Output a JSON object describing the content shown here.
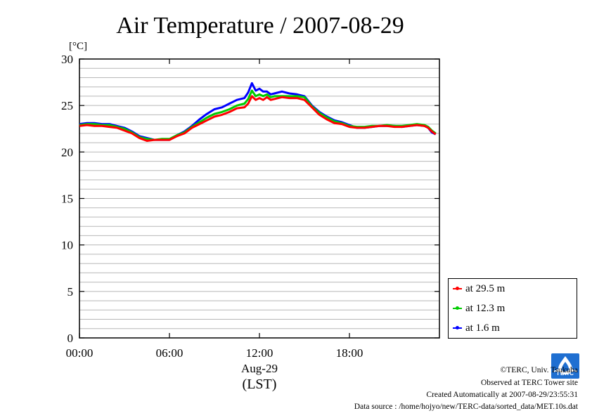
{
  "chart_data": {
    "type": "line",
    "title": "Air Temperature / 2007-08-29",
    "unit_label": "[°C]",
    "xlabel_date": "Aug-29",
    "xlabel": "(LST)",
    "x_ticks": [
      "00:00",
      "06:00",
      "12:00",
      "18:00"
    ],
    "x_tick_hours": [
      0,
      6,
      12,
      18
    ],
    "xlim": [
      0,
      24
    ],
    "ylim": [
      0,
      30
    ],
    "y_ticks": [
      0,
      5,
      10,
      15,
      20,
      25,
      30
    ],
    "grid": true,
    "legend_position": "right-bottom",
    "x_hours": [
      0,
      0.5,
      1,
      1.5,
      2,
      2.5,
      3,
      3.5,
      4,
      4.5,
      5,
      5.5,
      6,
      6.5,
      7,
      7.5,
      8,
      8.5,
      9,
      9.5,
      10,
      10.5,
      11,
      11.25,
      11.5,
      11.75,
      12,
      12.25,
      12.5,
      12.75,
      13,
      13.5,
      14,
      14.5,
      15,
      15.5,
      16,
      16.5,
      17,
      17.5,
      18,
      18.5,
      19,
      19.5,
      20,
      20.5,
      21,
      21.5,
      22,
      22.5,
      23,
      23.25,
      23.5,
      23.75
    ],
    "series": [
      {
        "name": "at 29.5 m",
        "color": "#ff0000",
        "values": [
          22.8,
          22.9,
          22.8,
          22.8,
          22.7,
          22.6,
          22.3,
          22.0,
          21.5,
          21.2,
          21.3,
          21.3,
          21.3,
          21.7,
          22.0,
          22.6,
          23.0,
          23.4,
          23.8,
          24.0,
          24.3,
          24.7,
          24.8,
          25.2,
          26.0,
          25.6,
          25.8,
          25.6,
          25.9,
          25.6,
          25.7,
          25.9,
          25.8,
          25.8,
          25.6,
          24.8,
          24.0,
          23.5,
          23.1,
          23.0,
          22.7,
          22.6,
          22.6,
          22.7,
          22.8,
          22.8,
          22.7,
          22.7,
          22.8,
          22.9,
          22.8,
          22.6,
          22.2,
          21.9
        ]
      },
      {
        "name": "at 12.3 m",
        "color": "#00cc00",
        "values": [
          22.9,
          23.0,
          23.0,
          22.9,
          22.9,
          22.7,
          22.5,
          22.1,
          21.6,
          21.4,
          21.3,
          21.4,
          21.4,
          21.8,
          22.1,
          22.7,
          23.2,
          23.7,
          24.1,
          24.3,
          24.6,
          25.0,
          25.2,
          25.7,
          26.6,
          26.0,
          26.2,
          26.0,
          26.2,
          25.9,
          26.0,
          26.0,
          26.0,
          26.0,
          25.9,
          24.9,
          24.2,
          23.7,
          23.3,
          23.1,
          22.8,
          22.7,
          22.7,
          22.8,
          22.8,
          22.9,
          22.8,
          22.8,
          22.9,
          23.0,
          22.9,
          22.7,
          22.3,
          22.0
        ]
      },
      {
        "name": "at 1.6 m",
        "color": "#0000ff",
        "values": [
          23.0,
          23.1,
          23.1,
          23.0,
          23.0,
          22.8,
          22.6,
          22.2,
          21.7,
          21.5,
          21.3,
          21.3,
          21.3,
          21.8,
          22.2,
          22.8,
          23.5,
          24.1,
          24.6,
          24.8,
          25.2,
          25.6,
          25.8,
          26.4,
          27.4,
          26.6,
          26.8,
          26.5,
          26.5,
          26.2,
          26.3,
          26.5,
          26.3,
          26.2,
          26.0,
          25.0,
          24.3,
          23.8,
          23.4,
          23.2,
          22.9,
          22.6,
          22.6,
          22.7,
          22.8,
          22.8,
          22.8,
          22.7,
          22.8,
          22.9,
          22.8,
          22.6,
          22.1,
          21.9
        ]
      }
    ]
  },
  "footer": {
    "copyright": "©TERC, Univ. Tsukuba",
    "site": "Observed at TERC Tower site",
    "created": "Created Automatically at 2007-08-29/23:55:31",
    "source": "Data source : /home/hojyo/new/TERC-data/sorted_data/MET.10s.dat"
  },
  "logo": {
    "text": "TERC",
    "color": "#1f6fd1"
  }
}
